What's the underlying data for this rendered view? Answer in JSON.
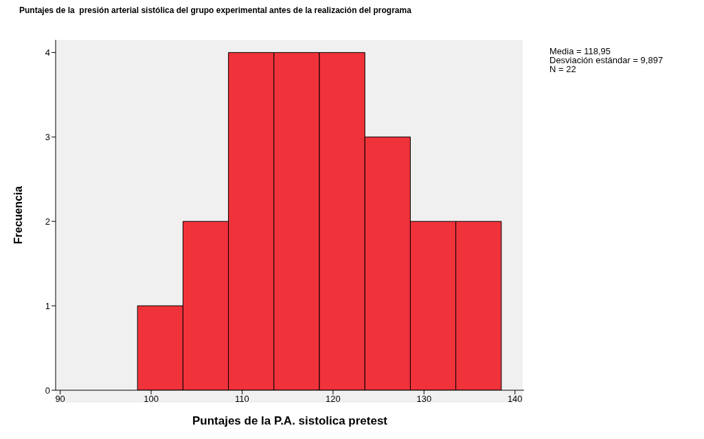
{
  "chart_data": {
    "type": "histogram",
    "title": "Puntajes de la  presión arterial sistólica del grupo experimental antes de la realización del programa",
    "xlabel": "Puntajes de la P.A. sistolica pretest",
    "ylabel": "Frecuencia",
    "bins": [
      98.5,
      103.5,
      108.5,
      113.5,
      118.5,
      123.5,
      128.5,
      133.5,
      138.5
    ],
    "values": [
      1,
      2,
      4,
      4,
      4,
      3,
      2,
      2
    ],
    "color": "#f0323a",
    "xlim": [
      89.5,
      141
    ],
    "xticks": [
      90,
      100,
      110,
      120,
      130,
      140
    ],
    "ylim": [
      0,
      4.15
    ],
    "yticks": [
      0,
      1,
      2,
      3,
      4
    ],
    "annotations": [
      "Media = 118,95",
      "Desviación estándar = 9,897",
      "N = 22"
    ]
  }
}
